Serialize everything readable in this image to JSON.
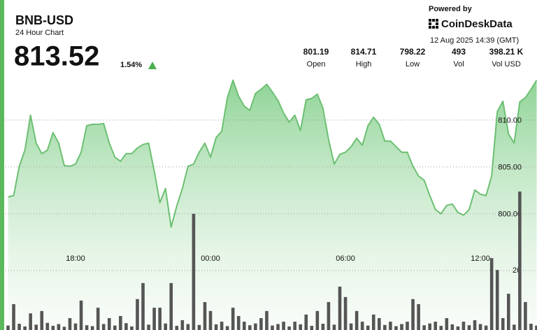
{
  "ticker": {
    "title": "BNB-USD",
    "subtitle": "24 Hour Chart",
    "price": "813.52",
    "change": "1.54%",
    "powered_by": "Powered by",
    "brand": "CoinDeskData",
    "timestamp": "12 Aug 2025 14:39 (GMT)",
    "stats": [
      {
        "value": "801.19",
        "label": "Open"
      },
      {
        "value": "814.71",
        "label": "High"
      },
      {
        "value": "798.22",
        "label": "Low"
      },
      {
        "value": "493",
        "label": "Vol"
      },
      {
        "value": "398.21 K",
        "label": "Vol USD"
      }
    ]
  },
  "chart_data": {
    "type": "line",
    "area": true,
    "grid": true,
    "categories": [
      null,
      null,
      null,
      null,
      null,
      null,
      null,
      null,
      null,
      null,
      null,
      null,
      "18:00",
      null,
      null,
      null,
      null,
      null,
      null,
      null,
      null,
      null,
      null,
      null,
      null,
      null,
      null,
      null,
      null,
      null,
      null,
      null,
      null,
      null,
      null,
      null,
      "00:00",
      null,
      null,
      null,
      null,
      null,
      null,
      null,
      null,
      null,
      null,
      null,
      null,
      null,
      null,
      null,
      null,
      null,
      null,
      null,
      null,
      null,
      null,
      null,
      "06:00",
      null,
      null,
      null,
      null,
      null,
      null,
      null,
      null,
      null,
      null,
      null,
      null,
      null,
      null,
      null,
      null,
      null,
      null,
      null,
      null,
      null,
      null,
      null,
      "12:00",
      null,
      null,
      null,
      null,
      null,
      null,
      null,
      null,
      null,
      null
    ],
    "series": [
      {
        "color": "#6cc072",
        "values": [
          801.79,
          801.94,
          805.07,
          806.79,
          810.52,
          807.54,
          806.42,
          806.79,
          808.66,
          807.54,
          805.15,
          805.07,
          805.3,
          806.57,
          809.4,
          809.55,
          809.55,
          809.63,
          807.54,
          806.04,
          805.6,
          806.42,
          806.42,
          807.01,
          807.39,
          807.54,
          804.55,
          801.19,
          802.69,
          798.58,
          800.82,
          802.69,
          805.07,
          805.3,
          806.57,
          807.54,
          806.04,
          808.13,
          808.81,
          812.39,
          814.25,
          812.54,
          811.49,
          811.04,
          812.84,
          813.28,
          813.81,
          812.99,
          812.09,
          810.75,
          809.78,
          810.52,
          808.88,
          812.16,
          812.31,
          812.76,
          811.27,
          807.91,
          805.3,
          806.34,
          806.57,
          807.16,
          808.06,
          807.31,
          809.4,
          810.3,
          809.55,
          807.76,
          807.76,
          807.16,
          806.57,
          806.57,
          805.07,
          804.03,
          803.58,
          801.94,
          800.45,
          800.0,
          800.9,
          801.04,
          800.15,
          799.85,
          800.45,
          802.54,
          802.09,
          801.94,
          804.03,
          810.9,
          812.01,
          808.51,
          807.54,
          811.94,
          812.39,
          813.28,
          814.25
        ]
      },
      {
        "type": "bar",
        "axis": "y2",
        "color": "#555555",
        "values": [
          1.5,
          8.7,
          2.1,
          1.2,
          5.6,
          1.8,
          6.4,
          2.4,
          1.4,
          2.0,
          1.1,
          4.0,
          2.2,
          9.9,
          1.6,
          1.3,
          7.5,
          2.0,
          4.0,
          1.5,
          4.7,
          2.3,
          1.2,
          10.4,
          15.8,
          1.8,
          7.5,
          7.5,
          2.2,
          15.8,
          1.4,
          3.3,
          2.0,
          39.1,
          1.7,
          9.4,
          6.4,
          1.9,
          2.8,
          1.3,
          7.5,
          4.7,
          2.8,
          1.6,
          2.2,
          4.0,
          6.4,
          1.5,
          2.0,
          2.8,
          1.2,
          2.8,
          1.9,
          5.2,
          1.4,
          6.4,
          2.1,
          9.4,
          1.8,
          14.6,
          11.1,
          2.2,
          6.4,
          2.8,
          1.5,
          5.2,
          4.0,
          1.7,
          2.8,
          1.3,
          2.0,
          2.8,
          10.4,
          8.7,
          1.6,
          2.2,
          2.8,
          1.4,
          4.0,
          1.9,
          1.2,
          2.8,
          1.6,
          3.3,
          2.0,
          1.5,
          24.2,
          20.2,
          4.0,
          12.2,
          1.8,
          46.6,
          9.4,
          2.1,
          1.5
        ]
      }
    ],
    "ylim": [
      787.6,
      815.5
    ],
    "yticks": [
      {
        "value": 800,
        "label": "800.00"
      },
      {
        "value": 805,
        "label": "805.00"
      },
      {
        "value": 810,
        "label": "810.00"
      }
    ],
    "y2lim": [
      0,
      88
    ],
    "y2ticks": [
      20
    ]
  }
}
